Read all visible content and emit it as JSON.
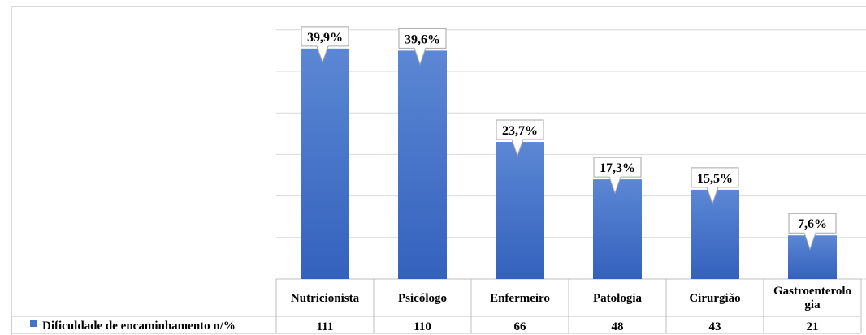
{
  "chart_data": {
    "type": "bar",
    "categories": [
      "Nutricionista",
      "Psicólogo",
      "Enfermeiro",
      "Patologia",
      "Cirurgião",
      "Gastroenterologia"
    ],
    "category_lines": [
      [
        "Nutricionista"
      ],
      [
        "Psicólogo"
      ],
      [
        "Enfermeiro"
      ],
      [
        "Patologia"
      ],
      [
        "Cirurgião"
      ],
      [
        "Gastroenterolo",
        "gia"
      ]
    ],
    "series": [
      {
        "name": "Dificuldade de encaminhamento n/%",
        "values": [
          111,
          110,
          66,
          48,
          43,
          21
        ],
        "percent_labels": [
          "39,9%",
          "39,6%",
          "23,7%",
          "17,3%",
          "15,5%",
          "7,6%"
        ]
      }
    ],
    "data_table": true,
    "grid": true,
    "ylim": [
      0,
      125
    ],
    "colors": {
      "bar_top": "#5b87d4",
      "bar_bottom": "#3461bd",
      "legend_key": "#4472c4",
      "grid": "#d9d9d9"
    }
  }
}
